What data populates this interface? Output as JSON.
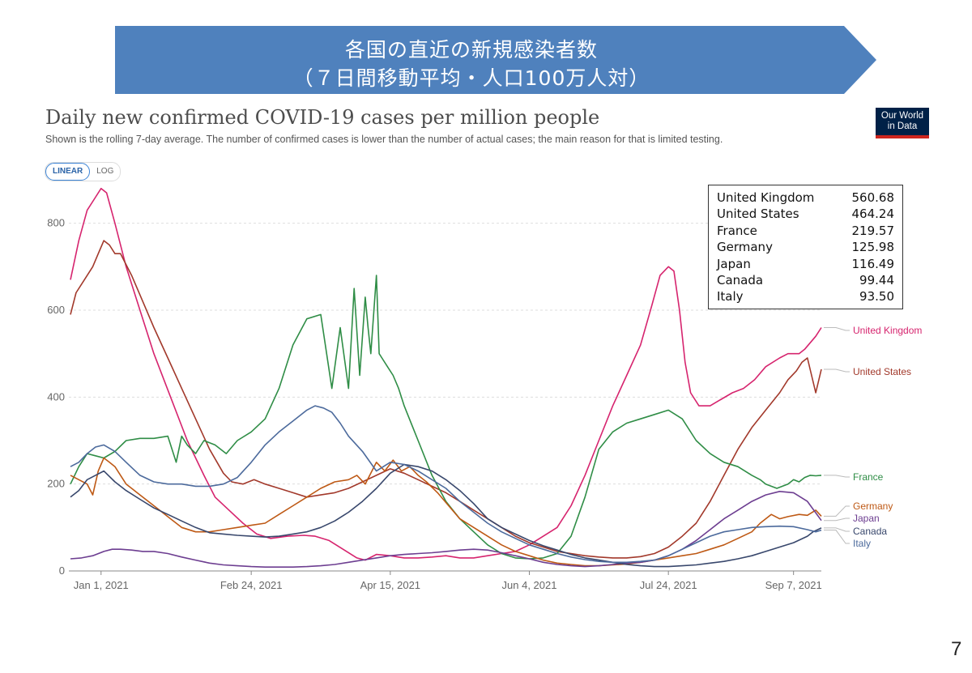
{
  "banner": {
    "title_line1": "各国の直近の新規感染者数",
    "title_line2": "（７日間移動平均・人口100万人対）",
    "color": "#4f81bd"
  },
  "logo": {
    "line1": "Our World",
    "line2": "in Data"
  },
  "scale_toggle": {
    "linear": "LINEAR",
    "log": "LOG",
    "selected": "LINEAR"
  },
  "page_number": "7",
  "tooltip": [
    {
      "country": "United Kingdom",
      "value": "560.68"
    },
    {
      "country": "United States",
      "value": "464.24"
    },
    {
      "country": "France",
      "value": "219.57"
    },
    {
      "country": "Germany",
      "value": "125.98"
    },
    {
      "country": "Japan",
      "value": "116.49"
    },
    {
      "country": "Canada",
      "value": "99.44"
    },
    {
      "country": "Italy",
      "value": "93.50"
    }
  ],
  "chart_data": {
    "type": "line",
    "title": "Daily new confirmed COVID-19 cases per million people",
    "subtitle": "Shown is the rolling 7-day average. The number of confirmed cases is lower than the number of actual cases; the main reason for that is limited testing.",
    "xlabel": "",
    "ylabel": "",
    "x_unit": "days since 2020-12-21",
    "xlim": [
      0,
      270
    ],
    "ylim": [
      0,
      900
    ],
    "y_ticks": [
      0,
      200,
      400,
      600,
      800
    ],
    "x_ticks": [
      {
        "day": 11,
        "label": "Jan 1, 2021"
      },
      {
        "day": 65,
        "label": "Feb 24, 2021"
      },
      {
        "day": 115,
        "label": "Apr 15, 2021"
      },
      {
        "day": 165,
        "label": "Jun 4, 2021"
      },
      {
        "day": 215,
        "label": "Jul 24, 2021"
      },
      {
        "day": 260,
        "label": "Sep 7, 2021"
      }
    ],
    "grid": true,
    "legend": "right",
    "series": [
      {
        "name": "United Kingdom",
        "color": "#d6246e",
        "label_value": 560,
        "x": [
          0,
          3,
          6,
          9,
          11,
          13,
          16,
          20,
          25,
          30,
          36,
          42,
          48,
          52,
          57,
          62,
          67,
          72,
          78,
          84,
          88,
          93,
          98,
          103,
          106,
          110,
          115,
          120,
          125,
          130,
          135,
          140,
          145,
          150,
          155,
          160,
          165,
          170,
          175,
          180,
          185,
          190,
          195,
          200,
          205,
          209,
          212,
          215,
          217,
          219,
          221,
          223,
          226,
          230,
          234,
          238,
          242,
          246,
          250,
          255,
          258,
          262,
          264,
          268,
          270
        ],
        "y": [
          670,
          760,
          830,
          860,
          880,
          870,
          800,
          700,
          600,
          500,
          400,
          300,
          220,
          170,
          140,
          110,
          85,
          75,
          80,
          82,
          80,
          70,
          50,
          30,
          25,
          38,
          35,
          30,
          30,
          32,
          35,
          30,
          30,
          35,
          40,
          45,
          60,
          80,
          100,
          150,
          220,
          300,
          380,
          450,
          520,
          610,
          680,
          700,
          690,
          600,
          480,
          410,
          380,
          380,
          395,
          410,
          420,
          440,
          470,
          490,
          500,
          500,
          510,
          540,
          560
        ]
      },
      {
        "name": "United States",
        "color": "#a2392b",
        "label_value": 464,
        "x": [
          0,
          2,
          5,
          8,
          10,
          12,
          14,
          16,
          18,
          22,
          26,
          30,
          35,
          40,
          45,
          50,
          55,
          58,
          62,
          66,
          70,
          75,
          80,
          85,
          90,
          95,
          100,
          105,
          110,
          115,
          120,
          125,
          130,
          135,
          140,
          145,
          150,
          155,
          160,
          165,
          170,
          175,
          180,
          185,
          190,
          195,
          200,
          205,
          210,
          215,
          220,
          225,
          230,
          235,
          240,
          245,
          250,
          255,
          258,
          261,
          263,
          265,
          268,
          270
        ],
        "y": [
          590,
          640,
          670,
          700,
          730,
          760,
          750,
          730,
          730,
          680,
          620,
          560,
          490,
          420,
          350,
          280,
          225,
          205,
          200,
          210,
          200,
          190,
          180,
          170,
          175,
          180,
          190,
          205,
          220,
          235,
          225,
          210,
          195,
          180,
          160,
          140,
          120,
          100,
          80,
          65,
          55,
          45,
          40,
          35,
          32,
          30,
          30,
          33,
          40,
          55,
          80,
          110,
          160,
          220,
          280,
          330,
          370,
          410,
          440,
          460,
          480,
          490,
          410,
          464
        ]
      },
      {
        "name": "France",
        "color": "#2f8d46",
        "label_value": 220,
        "x": [
          0,
          3,
          6,
          9,
          12,
          16,
          20,
          25,
          30,
          35,
          38,
          40,
          42,
          45,
          48,
          52,
          56,
          60,
          65,
          70,
          75,
          80,
          85,
          90,
          94,
          97,
          100,
          102,
          104,
          106,
          107,
          108,
          110,
          111,
          112,
          114,
          116,
          118,
          120,
          125,
          130,
          135,
          140,
          145,
          150,
          155,
          160,
          165,
          170,
          175,
          180,
          185,
          190,
          195,
          200,
          205,
          210,
          215,
          220,
          225,
          230,
          235,
          240,
          245,
          248,
          250,
          252,
          254,
          256,
          258,
          260,
          262,
          264,
          266,
          268,
          270
        ],
        "y": [
          200,
          240,
          270,
          265,
          260,
          275,
          300,
          305,
          305,
          310,
          250,
          310,
          290,
          270,
          300,
          290,
          270,
          300,
          320,
          350,
          420,
          520,
          580,
          590,
          420,
          560,
          420,
          650,
          450,
          630,
          560,
          500,
          680,
          500,
          490,
          470,
          450,
          420,
          380,
          300,
          220,
          160,
          120,
          90,
          60,
          40,
          30,
          28,
          30,
          40,
          80,
          170,
          280,
          320,
          340,
          350,
          360,
          370,
          350,
          300,
          270,
          250,
          240,
          220,
          210,
          200,
          195,
          190,
          195,
          200,
          210,
          205,
          215,
          220,
          219,
          220
        ]
      },
      {
        "name": "Germany",
        "color": "#be5915",
        "label_value": 126,
        "x": [
          0,
          3,
          6,
          8,
          10,
          12,
          14,
          16,
          18,
          20,
          22,
          25,
          28,
          32,
          36,
          40,
          45,
          50,
          55,
          60,
          65,
          70,
          75,
          80,
          85,
          90,
          95,
          100,
          103,
          106,
          110,
          113,
          116,
          119,
          122,
          125,
          128,
          132,
          136,
          140,
          145,
          150,
          155,
          160,
          165,
          170,
          175,
          180,
          185,
          190,
          195,
          200,
          205,
          210,
          215,
          220,
          225,
          230,
          235,
          240,
          245,
          248,
          252,
          255,
          258,
          262,
          265,
          268,
          270
        ],
        "y": [
          220,
          210,
          200,
          175,
          230,
          260,
          250,
          240,
          220,
          200,
          190,
          175,
          160,
          140,
          120,
          100,
          90,
          90,
          95,
          100,
          105,
          110,
          130,
          150,
          170,
          190,
          205,
          210,
          220,
          200,
          250,
          230,
          255,
          230,
          240,
          220,
          205,
          180,
          150,
          120,
          100,
          80,
          60,
          45,
          35,
          25,
          18,
          15,
          12,
          12,
          14,
          16,
          20,
          25,
          30,
          35,
          40,
          50,
          60,
          75,
          90,
          110,
          130,
          120,
          125,
          130,
          128,
          140,
          126
        ]
      },
      {
        "name": "Japan",
        "color": "#6d3e91",
        "label_value": 116,
        "x": [
          0,
          4,
          8,
          12,
          15,
          18,
          22,
          26,
          30,
          35,
          40,
          45,
          50,
          55,
          60,
          65,
          70,
          75,
          80,
          85,
          90,
          95,
          100,
          105,
          110,
          115,
          120,
          125,
          130,
          135,
          140,
          145,
          150,
          155,
          160,
          165,
          170,
          175,
          180,
          185,
          190,
          195,
          200,
          205,
          210,
          215,
          220,
          225,
          230,
          235,
          240,
          245,
          250,
          255,
          260,
          265,
          270
        ],
        "y": [
          28,
          30,
          35,
          45,
          50,
          50,
          48,
          45,
          45,
          40,
          32,
          25,
          18,
          14,
          12,
          10,
          9,
          9,
          9,
          10,
          12,
          15,
          20,
          25,
          30,
          35,
          38,
          40,
          42,
          45,
          48,
          50,
          48,
          42,
          35,
          28,
          20,
          15,
          12,
          10,
          12,
          15,
          18,
          20,
          25,
          35,
          50,
          70,
          95,
          120,
          140,
          160,
          175,
          183,
          180,
          160,
          116
        ]
      },
      {
        "name": "Canada",
        "color": "#38476c",
        "label_value": 99,
        "x": [
          0,
          3,
          6,
          9,
          12,
          16,
          20,
          25,
          30,
          35,
          40,
          45,
          50,
          55,
          60,
          65,
          70,
          75,
          80,
          85,
          90,
          95,
          100,
          105,
          110,
          115,
          120,
          125,
          130,
          135,
          140,
          145,
          150,
          155,
          160,
          165,
          170,
          175,
          180,
          185,
          190,
          195,
          200,
          205,
          210,
          215,
          220,
          225,
          230,
          235,
          240,
          245,
          250,
          255,
          260,
          265,
          267,
          270
        ],
        "y": [
          170,
          185,
          210,
          220,
          230,
          205,
          185,
          165,
          145,
          130,
          115,
          100,
          88,
          85,
          82,
          80,
          78,
          80,
          85,
          90,
          100,
          115,
          135,
          160,
          190,
          225,
          245,
          240,
          230,
          210,
          185,
          155,
          120,
          100,
          85,
          70,
          58,
          48,
          38,
          30,
          25,
          20,
          15,
          12,
          10,
          10,
          12,
          14,
          18,
          22,
          28,
          35,
          45,
          55,
          65,
          80,
          90,
          99
        ]
      },
      {
        "name": "Italy",
        "color": "#4c6a9c",
        "label_value": 94,
        "x": [
          0,
          3,
          6,
          9,
          12,
          16,
          20,
          25,
          30,
          35,
          40,
          45,
          50,
          55,
          60,
          65,
          70,
          75,
          80,
          85,
          88,
          91,
          94,
          97,
          100,
          105,
          110,
          115,
          120,
          125,
          130,
          135,
          140,
          145,
          150,
          155,
          160,
          165,
          170,
          175,
          180,
          185,
          190,
          195,
          200,
          205,
          210,
          215,
          220,
          225,
          230,
          235,
          240,
          245,
          250,
          255,
          260,
          265,
          268,
          270
        ],
        "y": [
          240,
          250,
          270,
          285,
          290,
          275,
          250,
          220,
          205,
          200,
          200,
          195,
          195,
          200,
          215,
          250,
          290,
          320,
          345,
          370,
          380,
          375,
          365,
          340,
          310,
          275,
          230,
          250,
          245,
          230,
          210,
          190,
          160,
          135,
          110,
          90,
          75,
          60,
          50,
          40,
          32,
          26,
          22,
          20,
          20,
          22,
          25,
          35,
          50,
          65,
          80,
          90,
          95,
          100,
          102,
          103,
          102,
          95,
          90,
          94
        ]
      }
    ]
  }
}
